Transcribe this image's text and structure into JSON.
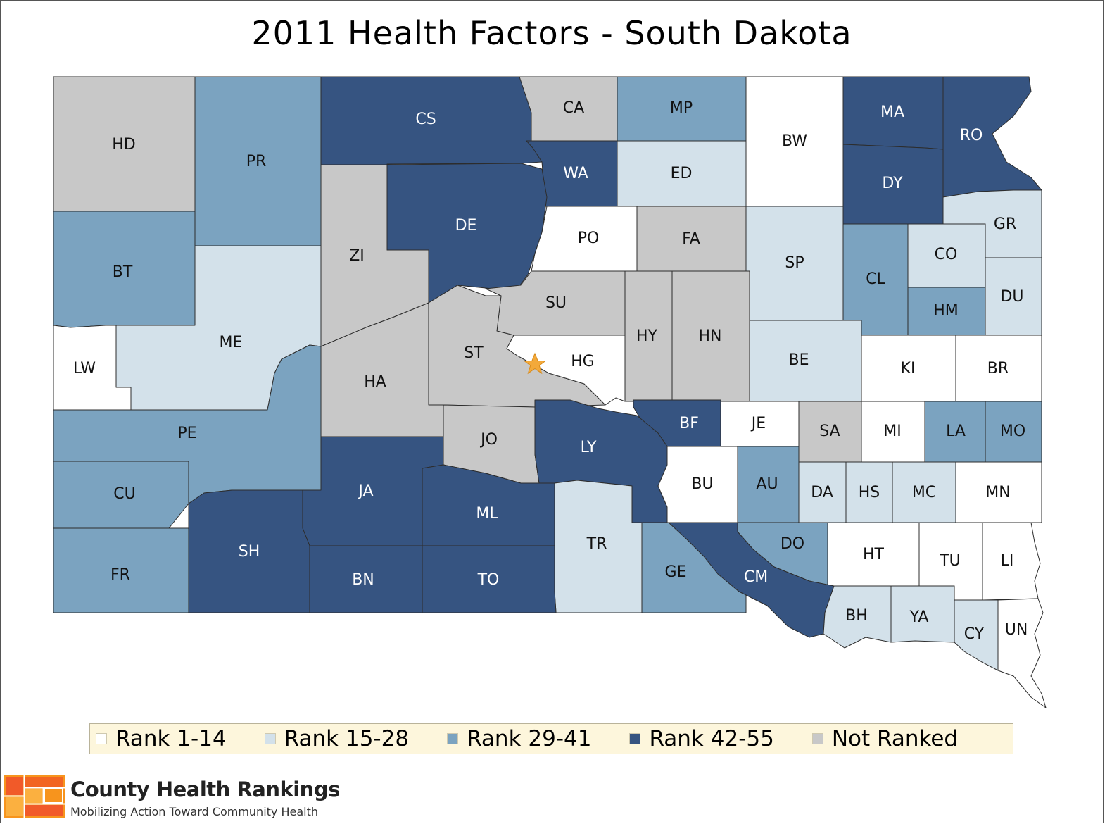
{
  "title": "2011 Health Factors - South Dakota",
  "colors": {
    "rank_1_14": "#ffffff",
    "rank_15_28": "#d3e1ea",
    "rank_29_41": "#7ba3c0",
    "rank_42_55": "#365481",
    "not_ranked": "#c8c8c8",
    "star": "#f3a93a"
  },
  "legend": [
    {
      "label": "Rank 1-14",
      "key": "rank_1_14"
    },
    {
      "label": "Rank 15-28",
      "key": "rank_15_28"
    },
    {
      "label": "Rank 29-41",
      "key": "rank_29_41"
    },
    {
      "label": "Rank 42-55",
      "key": "rank_42_55"
    },
    {
      "label": "Not Ranked",
      "key": "not_ranked"
    }
  ],
  "capital_marker": "star-icon",
  "counties": [
    {
      "code": "HD",
      "cat": "not_ranked"
    },
    {
      "code": "PR",
      "cat": "rank_29_41"
    },
    {
      "code": "CS",
      "cat": "rank_42_55"
    },
    {
      "code": "CA",
      "cat": "not_ranked"
    },
    {
      "code": "MP",
      "cat": "rank_29_41"
    },
    {
      "code": "BW",
      "cat": "rank_1_14"
    },
    {
      "code": "MA",
      "cat": "rank_42_55"
    },
    {
      "code": "RO",
      "cat": "rank_42_55"
    },
    {
      "code": "WA",
      "cat": "rank_42_55"
    },
    {
      "code": "ED",
      "cat": "rank_15_28"
    },
    {
      "code": "DY",
      "cat": "rank_42_55"
    },
    {
      "code": "GR",
      "cat": "rank_15_28"
    },
    {
      "code": "ZI",
      "cat": "not_ranked"
    },
    {
      "code": "DE",
      "cat": "rank_42_55"
    },
    {
      "code": "PO",
      "cat": "rank_1_14"
    },
    {
      "code": "FA",
      "cat": "not_ranked"
    },
    {
      "code": "SP",
      "cat": "rank_15_28"
    },
    {
      "code": "CO",
      "cat": "rank_15_28"
    },
    {
      "code": "CL",
      "cat": "rank_29_41"
    },
    {
      "code": "BT",
      "cat": "rank_29_41"
    },
    {
      "code": "DU",
      "cat": "rank_15_28"
    },
    {
      "code": "HM",
      "cat": "rank_29_41"
    },
    {
      "code": "SU",
      "cat": "not_ranked"
    },
    {
      "code": "ME",
      "cat": "rank_15_28"
    },
    {
      "code": "HY",
      "cat": "not_ranked"
    },
    {
      "code": "HN",
      "cat": "not_ranked"
    },
    {
      "code": "ST",
      "cat": "not_ranked"
    },
    {
      "code": "HG",
      "cat": "rank_1_14"
    },
    {
      "code": "BE",
      "cat": "rank_15_28"
    },
    {
      "code": "KI",
      "cat": "rank_1_14"
    },
    {
      "code": "BR",
      "cat": "rank_1_14"
    },
    {
      "code": "LW",
      "cat": "rank_1_14"
    },
    {
      "code": "HA",
      "cat": "not_ranked"
    },
    {
      "code": "PE",
      "cat": "rank_29_41"
    },
    {
      "code": "BF",
      "cat": "rank_42_55"
    },
    {
      "code": "JE",
      "cat": "rank_1_14"
    },
    {
      "code": "SA",
      "cat": "not_ranked"
    },
    {
      "code": "MI",
      "cat": "rank_1_14"
    },
    {
      "code": "LA",
      "cat": "rank_29_41"
    },
    {
      "code": "MO",
      "cat": "rank_29_41"
    },
    {
      "code": "JO",
      "cat": "not_ranked"
    },
    {
      "code": "LY",
      "cat": "rank_42_55"
    },
    {
      "code": "CU",
      "cat": "rank_29_41"
    },
    {
      "code": "JA",
      "cat": "rank_42_55"
    },
    {
      "code": "BU",
      "cat": "rank_1_14"
    },
    {
      "code": "AU",
      "cat": "rank_29_41"
    },
    {
      "code": "DA",
      "cat": "rank_15_28"
    },
    {
      "code": "HS",
      "cat": "rank_15_28"
    },
    {
      "code": "MC",
      "cat": "rank_15_28"
    },
    {
      "code": "MN",
      "cat": "rank_1_14"
    },
    {
      "code": "ML",
      "cat": "rank_42_55"
    },
    {
      "code": "SH",
      "cat": "rank_42_55"
    },
    {
      "code": "TR",
      "cat": "rank_15_28"
    },
    {
      "code": "DO",
      "cat": "rank_29_41"
    },
    {
      "code": "HT",
      "cat": "rank_1_14"
    },
    {
      "code": "TU",
      "cat": "rank_1_14"
    },
    {
      "code": "LI",
      "cat": "rank_1_14"
    },
    {
      "code": "FR",
      "cat": "rank_29_41"
    },
    {
      "code": "BN",
      "cat": "rank_42_55"
    },
    {
      "code": "TO",
      "cat": "rank_42_55"
    },
    {
      "code": "GE",
      "cat": "rank_29_41"
    },
    {
      "code": "CM",
      "cat": "rank_42_55"
    },
    {
      "code": "BH",
      "cat": "rank_15_28"
    },
    {
      "code": "YA",
      "cat": "rank_15_28"
    },
    {
      "code": "CY",
      "cat": "rank_15_28"
    },
    {
      "code": "UN",
      "cat": "rank_1_14"
    }
  ],
  "brand": {
    "name": "County Health Rankings",
    "tagline": "Mobilizing Action Toward Community Health"
  }
}
